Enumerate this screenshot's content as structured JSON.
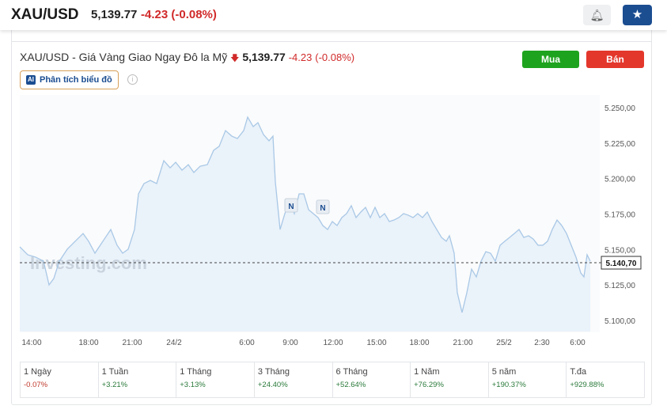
{
  "header": {
    "symbol": "XAU/USD",
    "price": "5,139.77",
    "change": "-4.23 (-0.08%)",
    "alert_icon": "bell-plus-icon",
    "watch_icon": "star-icon"
  },
  "instrument": {
    "title": "XAU/USD - Giá Vàng Giao Ngay Đô la Mỹ",
    "price": "5,139.77",
    "change": "-4.23",
    "change_pct": "(-0.08%)",
    "buy": "Mua",
    "sell": "Bán",
    "ai_badge": "AI",
    "ai_label": "Phân tích biểu đồ",
    "info": "i"
  },
  "colors": {
    "up": "#1ea31e",
    "down": "#e4372c",
    "line": "#a9c8e6",
    "fill": "#eaf2fa"
  },
  "chart_data": {
    "type": "area",
    "ylim": [
      5092,
      5258
    ],
    "y_ticks": [
      "5.250,00",
      "5.225,00",
      "5.200,00",
      "5.175,00",
      "5.150,00",
      "5.125,00",
      "5.100,00"
    ],
    "y_tick_values": [
      5250,
      5225,
      5200,
      5175,
      5150,
      5125,
      5100
    ],
    "x_ticks": [
      "14:00",
      "18:00",
      "21:00",
      "24/2",
      "6:00",
      "9:00",
      "12:00",
      "15:00",
      "18:00",
      "21:00",
      "25/2",
      "2:30",
      "6:00"
    ],
    "current": 5140.7,
    "current_label": "5.140,70",
    "watermark": "Investing.com",
    "event_markers": [
      "N",
      "N"
    ],
    "values": [
      5151.9,
      5146.3,
      5144.6,
      5141.8,
      5125.1,
      5129.6,
      5141.8,
      5150.2,
      5155.8,
      5161.3,
      5155.8,
      5147.4,
      5155.8,
      5164.1,
      5153.0,
      5147.4,
      5150.2,
      5164.1,
      5189.2,
      5196.5,
      5198.7,
      5196.5,
      5212.6,
      5207.6,
      5211.5,
      5205.9,
      5209.8,
      5204.3,
      5208.7,
      5209.8,
      5219.9,
      5222.7,
      5233.8,
      5229.9,
      5228.2,
      5233.8,
      5243.3,
      5236.6,
      5239.4,
      5231.0,
      5226.6,
      5229.9,
      5197.6,
      5164.1,
      5175.3,
      5183.6,
      5175.3,
      5189.2,
      5189.2,
      5178.1,
      5175.3,
      5172.5,
      5166.9,
      5164.1,
      5169.7,
      5166.9,
      5172.5,
      5175.3,
      5180.9,
      5172.5,
      5176.4,
      5179.7,
      5172.5,
      5179.7,
      5172.5,
      5175.3,
      5169.7,
      5170.8,
      5172.5,
      5175.3,
      5174.2,
      5172.5,
      5175.3,
      5172.5,
      5176.4,
      5169.7,
      5164.1,
      5158.5,
      5155.8,
      5159.7,
      5147.4,
      5119.5,
      5105.6,
      5119.5,
      5136.2,
      5130.7,
      5141.8,
      5148.5,
      5147.4,
      5141.8,
      5153.0,
      5155.8,
      5158.5,
      5161.3,
      5164.1,
      5158.5,
      5159.7,
      5157.4,
      5153.0,
      5153.0,
      5155.8,
      5164.1,
      5170.8,
      5166.9,
      5161.3,
      5153.0,
      5144.6,
      5133.5,
      5130.7,
      5146.3,
      5141.8
    ]
  },
  "performance": [
    {
      "label": "1 Ngày",
      "value": "-0.07%"
    },
    {
      "label": "1 Tuần",
      "value": "+3.21%"
    },
    {
      "label": "1 Tháng",
      "value": "+3.13%"
    },
    {
      "label": "3 Tháng",
      "value": "+24.40%"
    },
    {
      "label": "6 Tháng",
      "value": "+52.64%"
    },
    {
      "label": "1 Năm",
      "value": "+76.29%"
    },
    {
      "label": "5 năm",
      "value": "+190.37%"
    },
    {
      "label": "T.đa",
      "value": "+929.88%"
    }
  ]
}
